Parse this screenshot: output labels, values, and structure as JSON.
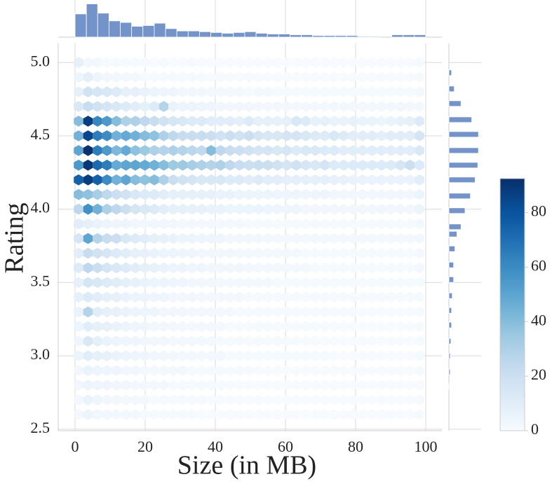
{
  "chart_data": {
    "type": "hexbin",
    "xlabel": "Size (in MB)",
    "ylabel": "Rating",
    "xlim": [
      -4.8,
      104.6
    ],
    "ylim": [
      2.49,
      5.13
    ],
    "xticks": [
      0,
      20,
      40,
      60,
      80,
      100
    ],
    "yticks": [
      2.5,
      {
        "value": 3,
        "label": "3.0"
      },
      3.5,
      {
        "value": 4,
        "label": "4.0"
      },
      4.5,
      {
        "value": 5,
        "label": "5.0"
      }
    ],
    "grid": true,
    "cmap": [
      "#f7fbff",
      "#deebf7",
      "#c6dbef",
      "#9ecae1",
      "#6baed6",
      "#4292c6",
      "#2171b5",
      "#08519c",
      "#08306b"
    ],
    "hexbin": {
      "x": [
        1,
        3.7,
        6.4,
        9.1,
        11.8,
        14.5,
        17.2,
        19.9,
        22.6,
        25.3,
        28,
        30.7,
        33.4,
        36.1,
        38.8,
        41.5,
        44.2,
        46.9,
        49.6,
        52.3,
        55,
        57.7,
        60.4,
        63.1,
        65.8,
        68.5,
        71.2,
        73.9,
        76.6,
        79.3,
        82,
        84.7,
        87.4,
        90.1,
        92.8,
        95.5,
        98.2
      ],
      "y": [
        5.0,
        4.9,
        4.8,
        4.7,
        4.6,
        4.5,
        4.4,
        4.3,
        4.2,
        4.1,
        4.0,
        3.9,
        3.8,
        3.7,
        3.6,
        3.5,
        3.4,
        3.3,
        3.2,
        3.1,
        3.0,
        2.9,
        2.8,
        2.7,
        2.6
      ],
      "counts": [
        [
          8,
          2,
          2,
          1,
          1,
          1,
          1,
          1,
          0,
          1,
          0,
          0,
          1,
          0,
          0,
          0,
          0,
          0,
          0,
          0,
          0,
          0,
          0,
          0,
          0,
          0,
          0,
          0,
          0,
          0,
          0,
          0,
          0,
          0,
          0,
          0,
          1
        ],
        [
          5,
          9,
          4,
          3,
          2,
          2,
          2,
          1,
          1,
          1,
          1,
          1,
          1,
          1,
          0,
          1,
          0,
          0,
          1,
          0,
          0,
          0,
          0,
          0,
          0,
          0,
          0,
          0,
          0,
          0,
          0,
          0,
          0,
          0,
          0,
          0,
          1
        ],
        [
          8,
          18,
          15,
          14,
          12,
          8,
          8,
          6,
          5,
          4,
          4,
          3,
          3,
          3,
          2,
          2,
          2,
          2,
          1,
          2,
          2,
          1,
          1,
          1,
          1,
          1,
          1,
          1,
          1,
          1,
          1,
          1,
          1,
          1,
          1,
          1,
          2
        ],
        [
          14,
          22,
          18,
          16,
          14,
          12,
          10,
          8,
          12,
          28,
          6,
          5,
          5,
          4,
          4,
          3,
          3,
          3,
          3,
          2,
          2,
          2,
          2,
          2,
          2,
          2,
          2,
          2,
          2,
          2,
          2,
          2,
          2,
          2,
          3,
          2,
          2
        ],
        [
          40,
          88,
          62,
          55,
          40,
          30,
          30,
          25,
          22,
          18,
          15,
          14,
          12,
          12,
          10,
          10,
          10,
          9,
          12,
          8,
          8,
          7,
          8,
          14,
          12,
          7,
          8,
          6,
          6,
          7,
          6,
          6,
          5,
          6,
          7,
          8,
          12
        ],
        [
          45,
          85,
          65,
          60,
          45,
          48,
          45,
          40,
          38,
          30,
          25,
          22,
          22,
          22,
          20,
          18,
          20,
          18,
          20,
          16,
          14,
          14,
          16,
          16,
          14,
          12,
          12,
          14,
          12,
          10,
          10,
          10,
          9,
          10,
          10,
          10,
          16
        ],
        [
          50,
          92,
          65,
          55,
          42,
          48,
          38,
          35,
          30,
          28,
          30,
          28,
          26,
          24,
          40,
          25,
          22,
          20,
          18,
          16,
          16,
          14,
          15,
          12,
          14,
          14,
          12,
          12,
          10,
          10,
          10,
          10,
          10,
          10,
          10,
          10,
          14
        ],
        [
          55,
          90,
          72,
          65,
          48,
          50,
          50,
          48,
          45,
          40,
          35,
          35,
          32,
          30,
          28,
          30,
          25,
          22,
          20,
          22,
          20,
          18,
          16,
          18,
          15,
          14,
          16,
          12,
          12,
          12,
          12,
          12,
          12,
          12,
          15,
          20,
          12
        ],
        [
          75,
          88,
          75,
          60,
          45,
          50,
          40,
          38,
          40,
          30,
          20,
          18,
          16,
          14,
          14,
          14,
          12,
          12,
          10,
          12,
          10,
          10,
          9,
          9,
          8,
          8,
          8,
          7,
          7,
          6,
          6,
          6,
          6,
          6,
          6,
          6,
          10
        ],
        [
          40,
          38,
          32,
          25,
          20,
          18,
          14,
          12,
          12,
          10,
          8,
          8,
          8,
          7,
          7,
          6,
          6,
          5,
          5,
          5,
          5,
          4,
          4,
          4,
          4,
          4,
          4,
          3,
          3,
          3,
          3,
          3,
          3,
          3,
          3,
          3,
          5
        ],
        [
          25,
          58,
          45,
          30,
          25,
          20,
          16,
          14,
          12,
          10,
          8,
          8,
          7,
          7,
          6,
          6,
          5,
          5,
          5,
          5,
          4,
          4,
          4,
          4,
          3,
          3,
          3,
          3,
          3,
          3,
          3,
          3,
          3,
          3,
          3,
          3,
          5
        ],
        [
          10,
          8,
          6,
          5,
          4,
          4,
          3,
          3,
          3,
          3,
          3,
          2,
          2,
          2,
          2,
          2,
          2,
          2,
          1,
          1,
          1,
          1,
          1,
          1,
          1,
          1,
          1,
          1,
          1,
          1,
          1,
          1,
          1,
          1,
          1,
          1,
          2
        ],
        [
          15,
          50,
          28,
          22,
          20,
          14,
          12,
          10,
          8,
          7,
          6,
          5,
          5,
          4,
          4,
          4,
          3,
          3,
          3,
          3,
          3,
          2,
          2,
          2,
          2,
          2,
          2,
          2,
          2,
          2,
          2,
          2,
          2,
          2,
          2,
          2,
          3
        ],
        [
          10,
          22,
          18,
          15,
          12,
          10,
          8,
          7,
          6,
          5,
          5,
          4,
          4,
          3,
          3,
          3,
          3,
          2,
          2,
          2,
          2,
          2,
          2,
          2,
          1,
          1,
          1,
          1,
          1,
          1,
          1,
          1,
          1,
          1,
          1,
          1,
          2
        ],
        [
          12,
          25,
          20,
          16,
          14,
          12,
          10,
          8,
          7,
          6,
          5,
          5,
          4,
          4,
          3,
          3,
          3,
          3,
          2,
          2,
          2,
          2,
          2,
          2,
          2,
          1,
          1,
          1,
          1,
          1,
          1,
          1,
          1,
          1,
          1,
          1,
          2
        ],
        [
          8,
          16,
          14,
          12,
          10,
          8,
          7,
          6,
          5,
          5,
          4,
          4,
          3,
          3,
          3,
          2,
          2,
          2,
          2,
          2,
          2,
          1,
          1,
          1,
          1,
          1,
          1,
          1,
          1,
          1,
          1,
          1,
          1,
          1,
          1,
          1,
          1
        ],
        [
          8,
          12,
          10,
          8,
          8,
          6,
          5,
          5,
          4,
          4,
          3,
          3,
          3,
          2,
          2,
          2,
          2,
          2,
          1,
          1,
          1,
          1,
          1,
          1,
          1,
          1,
          1,
          1,
          1,
          1,
          1,
          1,
          1,
          1,
          1,
          1,
          1
        ],
        [
          6,
          28,
          10,
          8,
          7,
          6,
          5,
          4,
          4,
          3,
          3,
          3,
          2,
          2,
          2,
          2,
          2,
          1,
          1,
          1,
          1,
          1,
          1,
          1,
          1,
          1,
          1,
          1,
          1,
          1,
          0,
          0,
          0,
          0,
          0,
          0,
          1
        ],
        [
          5,
          10,
          8,
          7,
          6,
          5,
          4,
          4,
          3,
          3,
          3,
          2,
          2,
          2,
          2,
          2,
          1,
          1,
          1,
          1,
          1,
          1,
          1,
          1,
          1,
          1,
          1,
          0,
          0,
          0,
          0,
          0,
          0,
          0,
          0,
          0,
          1
        ],
        [
          4,
          14,
          8,
          6,
          5,
          4,
          4,
          3,
          3,
          3,
          2,
          2,
          2,
          2,
          2,
          1,
          1,
          1,
          1,
          1,
          1,
          1,
          1,
          1,
          0,
          0,
          0,
          0,
          0,
          0,
          0,
          0,
          0,
          0,
          0,
          0,
          1
        ],
        [
          5,
          10,
          8,
          7,
          6,
          5,
          4,
          4,
          3,
          3,
          3,
          2,
          2,
          2,
          2,
          2,
          1,
          1,
          1,
          1,
          1,
          1,
          1,
          1,
          1,
          1,
          1,
          0,
          0,
          0,
          0,
          0,
          0,
          0,
          0,
          0,
          1
        ],
        [
          3,
          6,
          5,
          4,
          4,
          3,
          3,
          2,
          2,
          2,
          2,
          2,
          1,
          1,
          1,
          1,
          1,
          1,
          1,
          0,
          0,
          0,
          0,
          0,
          0,
          0,
          0,
          0,
          0,
          0,
          0,
          0,
          0,
          0,
          0,
          0,
          1
        ],
        [
          3,
          5,
          4,
          4,
          3,
          3,
          2,
          2,
          2,
          2,
          1,
          1,
          1,
          1,
          1,
          1,
          0,
          0,
          0,
          0,
          0,
          0,
          0,
          0,
          0,
          0,
          0,
          0,
          0,
          0,
          0,
          0,
          0,
          0,
          0,
          0,
          0
        ],
        [
          2,
          6,
          4,
          3,
          3,
          2,
          2,
          2,
          1,
          1,
          1,
          1,
          1,
          1,
          0,
          0,
          0,
          0,
          0,
          0,
          0,
          0,
          0,
          0,
          0,
          0,
          0,
          0,
          0,
          0,
          0,
          0,
          0,
          0,
          0,
          0,
          1
        ],
        [
          2,
          5,
          3,
          3,
          2,
          2,
          2,
          1,
          1,
          1,
          1,
          1,
          1,
          0,
          0,
          0,
          0,
          0,
          0,
          0,
          0,
          0,
          0,
          0,
          0,
          0,
          0,
          0,
          0,
          0,
          0,
          0,
          0,
          0,
          0,
          0,
          1
        ]
      ]
    },
    "colorbar": {
      "lim": [
        0,
        92.5
      ],
      "ticks": [
        0,
        20,
        40,
        60,
        80
      ]
    },
    "marginal_color": "#7494c9",
    "marginal_x": {
      "bins": [
        0,
        3.23,
        6.45,
        9.68,
        12.9,
        16.13,
        19.35,
        22.58,
        25.81,
        29.03,
        32.26,
        35.48,
        38.71,
        41.94,
        45.16,
        48.39,
        51.61,
        54.84,
        58.06,
        61.29,
        64.52,
        67.74,
        70.97,
        74.19,
        77.42,
        80.65,
        83.87,
        87.1,
        90.32,
        93.55,
        96.77,
        100
      ],
      "counts": [
        30,
        43,
        31,
        21,
        19,
        14,
        15,
        18,
        11,
        8,
        8,
        7,
        6,
        5,
        6,
        7,
        5,
        4,
        4,
        3,
        3,
        2,
        2,
        2,
        2,
        1,
        1,
        0,
        3,
        3,
        3
      ],
      "ylim": [
        0,
        48
      ]
    },
    "marginal_y": {
      "y": [
        4.93,
        4.82,
        4.72,
        4.61,
        4.51,
        4.4,
        4.3,
        4.2,
        4.09,
        3.99,
        3.88,
        3.83,
        3.73,
        3.62,
        3.52,
        3.41,
        3.31,
        3.21,
        3.1,
        3.0,
        2.89,
        2.79
      ],
      "counts": [
        4,
        8,
        18,
        34,
        44,
        44,
        43,
        39,
        32,
        24,
        18,
        12,
        9,
        7,
        7,
        5,
        4,
        4,
        3,
        2,
        2,
        1
      ],
      "xlim": [
        0,
        48
      ]
    }
  }
}
